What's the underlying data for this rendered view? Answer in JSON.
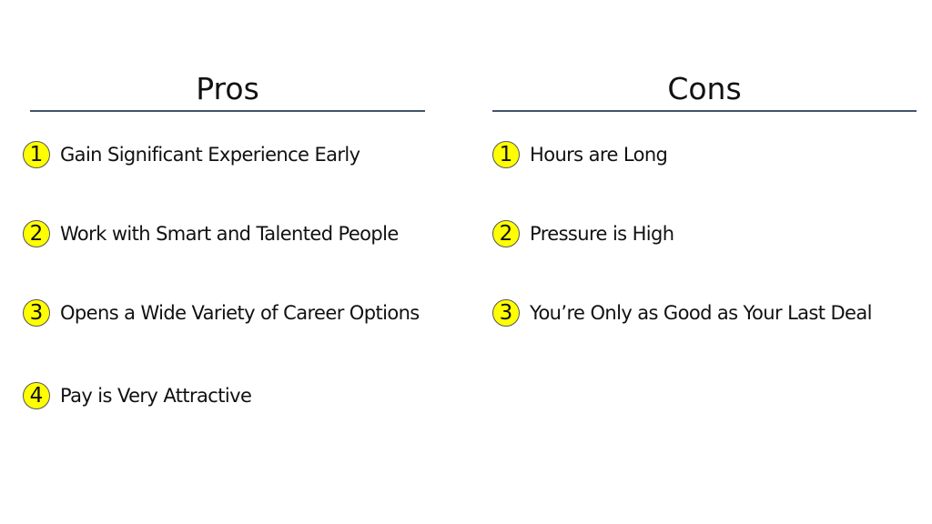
{
  "pros": {
    "title": "Pros",
    "items": [
      {
        "number": "1",
        "text": "Gain Significant Experience Early"
      },
      {
        "number": "2",
        "text": "Work with Smart and Talented People"
      },
      {
        "number": "3",
        "text": "Opens a Wide Variety of Career Options"
      },
      {
        "number": "4",
        "text": "Pay is Very Attractive"
      }
    ]
  },
  "cons": {
    "title": "Cons",
    "items": [
      {
        "number": "1",
        "text": "Hours are Long"
      },
      {
        "number": "2",
        "text": "Pressure is High"
      },
      {
        "number": "3",
        "text": "You’re Only as Good as Your Last Deal"
      }
    ]
  },
  "colors": {
    "rule": "#44546a",
    "badge": "#ffff00"
  }
}
